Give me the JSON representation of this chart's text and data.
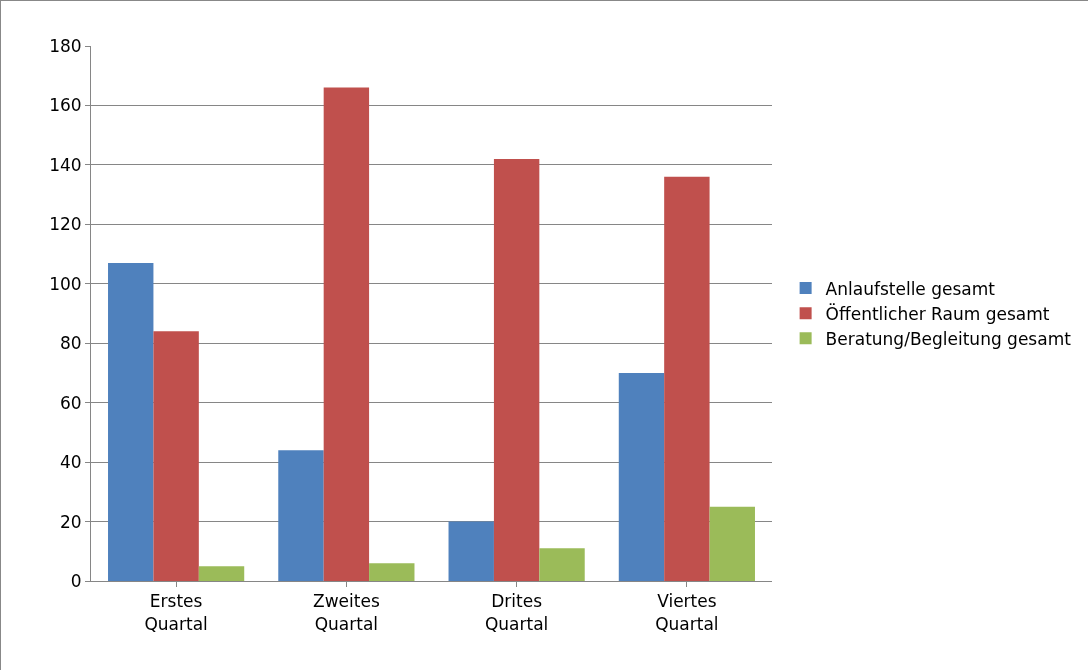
{
  "chart_data": {
    "type": "bar",
    "categories": [
      "Erstes\nQuartal",
      "Zweites\nQuartal",
      "Drites\nQuartal",
      "Viertes\nQuartal"
    ],
    "series": [
      {
        "name": "Anlaufstelle gesamt",
        "color": "#4f81bd",
        "values": [
          107,
          44,
          20,
          70
        ]
      },
      {
        "name": "Öffentlicher Raum gesamt",
        "color": "#c0504d",
        "values": [
          84,
          166,
          142,
          136
        ]
      },
      {
        "name": "Beratung/Begleitung gesamt",
        "color": "#9bbb59",
        "values": [
          5,
          6,
          11,
          25
        ]
      }
    ],
    "ylim": [
      0,
      180
    ],
    "yticks": [
      0,
      20,
      40,
      60,
      80,
      100,
      120,
      140,
      160,
      180
    ],
    "grid": "y",
    "legend": "right"
  }
}
